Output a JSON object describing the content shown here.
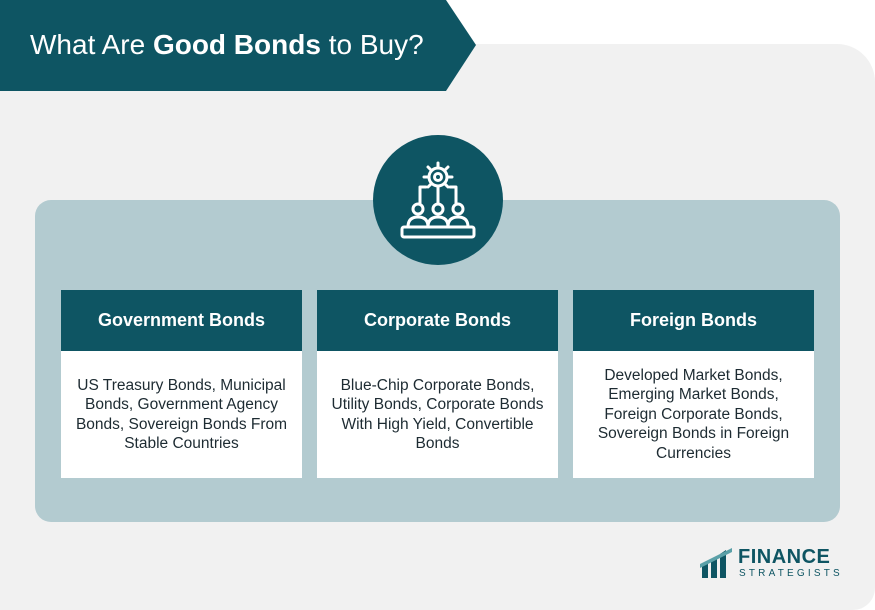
{
  "header": {
    "title_prefix": "What Are ",
    "title_bold": "Good Bonds",
    "title_suffix": " to Buy?"
  },
  "central_icon": "gear-people-network-icon",
  "colors": {
    "primary": "#0e5563",
    "panel": "#b3cbd0",
    "background": "#f1f1f1"
  },
  "cards": [
    {
      "title": "Government Bonds",
      "body": "US Treasury Bonds, Municipal Bonds, Government Agency Bonds, Sovereign Bonds From Stable Countries"
    },
    {
      "title": "Corporate Bonds",
      "body": "Blue-Chip Corporate Bonds, Utility Bonds, Corporate Bonds With High Yield, Convertible Bonds"
    },
    {
      "title": "Foreign Bonds",
      "body": "Developed Market Bonds, Emerging Market Bonds, Foreign Corporate Bonds, Sovereign Bonds in Foreign Currencies"
    }
  ],
  "logo": {
    "line1": "FINANCE",
    "line2": "STRATEGISTS"
  }
}
